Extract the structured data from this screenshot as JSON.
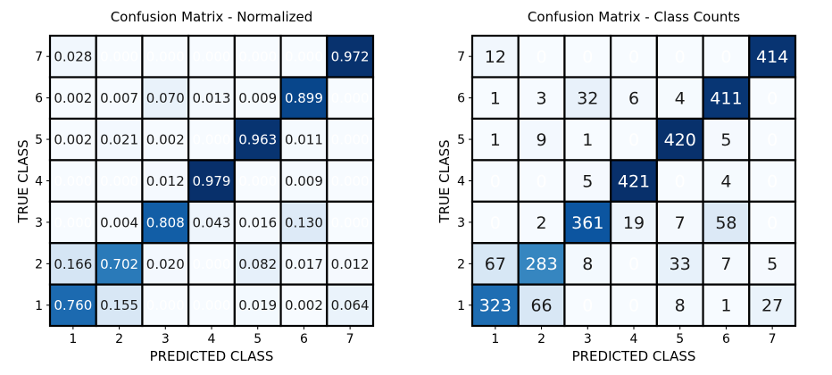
{
  "chart_data": [
    {
      "type": "heatmap",
      "title": "Confusion Matrix - Normalized",
      "xlabel": "PREDICTED CLASS",
      "ylabel": "TRUE CLASS",
      "x_ticks": [
        "1",
        "2",
        "3",
        "4",
        "5",
        "6",
        "7"
      ],
      "y_ticks": [
        "1",
        "2",
        "3",
        "4",
        "5",
        "6",
        "7"
      ],
      "colorscale": "Blues",
      "vmin": 0,
      "vmax": 0.979,
      "value_format": "fixed3",
      "rows": [
        {
          "true_class": "1",
          "values": [
            0.76,
            0.155,
            0.0,
            0.0,
            0.019,
            0.002,
            0.064
          ]
        },
        {
          "true_class": "2",
          "values": [
            0.166,
            0.702,
            0.02,
            0.0,
            0.082,
            0.017,
            0.012
          ]
        },
        {
          "true_class": "3",
          "values": [
            0.0,
            0.004,
            0.808,
            0.043,
            0.016,
            0.13,
            0.0
          ]
        },
        {
          "true_class": "4",
          "values": [
            0.0,
            0.0,
            0.012,
            0.979,
            0.0,
            0.009,
            0.0
          ]
        },
        {
          "true_class": "5",
          "values": [
            0.002,
            0.021,
            0.002,
            0.0,
            0.963,
            0.011,
            0.0
          ]
        },
        {
          "true_class": "6",
          "values": [
            0.002,
            0.007,
            0.07,
            0.013,
            0.009,
            0.899,
            0.0
          ]
        },
        {
          "true_class": "7",
          "values": [
            0.028,
            0.0,
            0.0,
            0.0,
            0.0,
            0.0,
            0.972
          ]
        }
      ]
    },
    {
      "type": "heatmap",
      "title": "Confusion Matrix - Class Counts",
      "xlabel": "PREDICTED CLASS",
      "ylabel": "TRUE CLASS",
      "x_ticks": [
        "1",
        "2",
        "3",
        "4",
        "5",
        "6",
        "7"
      ],
      "y_ticks": [
        "1",
        "2",
        "3",
        "4",
        "5",
        "6",
        "7"
      ],
      "colorscale": "Blues",
      "vmin": 0,
      "vmax": 421,
      "value_format": "integer",
      "rows": [
        {
          "true_class": "1",
          "values": [
            323,
            66,
            0,
            0,
            8,
            1,
            27
          ]
        },
        {
          "true_class": "2",
          "values": [
            67,
            283,
            8,
            0,
            33,
            7,
            5
          ]
        },
        {
          "true_class": "3",
          "values": [
            0,
            2,
            361,
            19,
            7,
            58,
            0
          ]
        },
        {
          "true_class": "4",
          "values": [
            0,
            0,
            5,
            421,
            0,
            4,
            0
          ]
        },
        {
          "true_class": "5",
          "values": [
            1,
            9,
            1,
            0,
            420,
            5,
            0
          ]
        },
        {
          "true_class": "6",
          "values": [
            1,
            3,
            32,
            6,
            4,
            411,
            0
          ]
        },
        {
          "true_class": "7",
          "values": [
            12,
            0,
            0,
            0,
            0,
            0,
            414
          ]
        }
      ]
    }
  ]
}
